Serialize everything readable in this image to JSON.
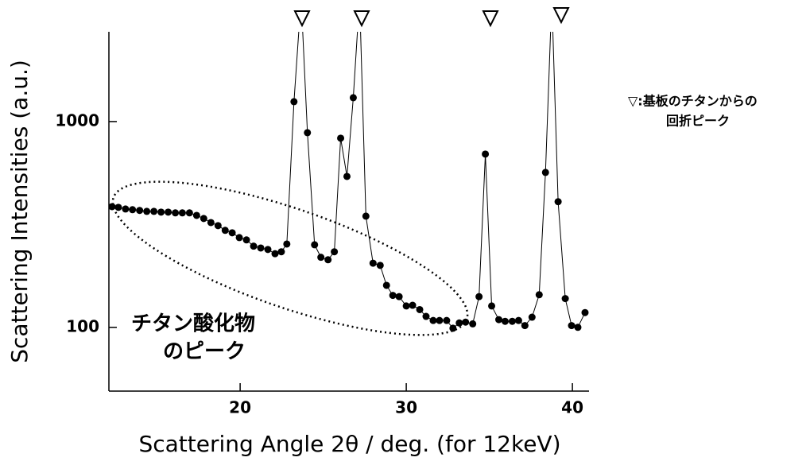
{
  "chart_data": {
    "type": "line",
    "xlabel": "Scattering Angle 2θ / deg. (for 12keV)",
    "ylabel": "Scattering Intensities (a.u.)",
    "annotations": [
      "チタン酸化物",
      "のピーク"
    ],
    "note": [
      "▽:基板のチタンからの",
      "回折ピーク"
    ],
    "log_y": true,
    "xlim": [
      12.1,
      41
    ],
    "ylim": [
      49,
      2730
    ],
    "xticks": [
      20,
      30,
      40
    ],
    "yticks": [
      100,
      1000
    ],
    "series": [
      {
        "color": "#000000",
        "x": [
          12.29,
          12.67,
          13.1,
          13.52,
          13.95,
          14.38,
          14.81,
          15.24,
          15.67,
          16.1,
          16.52,
          16.95,
          17.38,
          17.81,
          18.24,
          18.67,
          19.1,
          19.52,
          19.95,
          20.38,
          20.81,
          21.24,
          21.67,
          22.1,
          22.48,
          22.81,
          23.24,
          23.67,
          24.05,
          24.48,
          24.86,
          25.29,
          25.67,
          26.05,
          26.43,
          26.81,
          27.19,
          27.57,
          28.0,
          28.43,
          28.81,
          29.19,
          29.57,
          30.0,
          30.38,
          30.81,
          31.19,
          31.62,
          32.0,
          32.43,
          32.81,
          33.19,
          33.57,
          34.0,
          34.38,
          34.76,
          35.14,
          35.57,
          35.95,
          36.38,
          36.76,
          37.14,
          37.57,
          38.0,
          38.38,
          38.76,
          39.14,
          39.57,
          39.95,
          40.33,
          40.76
        ],
        "values": [
          386,
          383,
          376,
          373,
          370,
          366,
          366,
          363,
          363,
          360,
          360,
          360,
          350,
          338,
          323,
          312,
          296,
          288,
          273,
          266,
          248,
          243,
          239,
          228,
          233,
          254,
          1249,
          4000,
          883,
          252,
          219,
          213,
          233,
          830,
          541,
          1306,
          4000,
          347,
          205,
          200,
          160,
          143,
          141,
          127,
          128,
          122,
          113,
          108,
          108,
          108,
          99,
          105,
          106,
          104,
          141,
          695,
          127,
          109,
          107,
          107,
          108,
          102,
          112,
          144,
          566,
          4000,
          408,
          138,
          102,
          100,
          118
        ]
      }
    ]
  }
}
